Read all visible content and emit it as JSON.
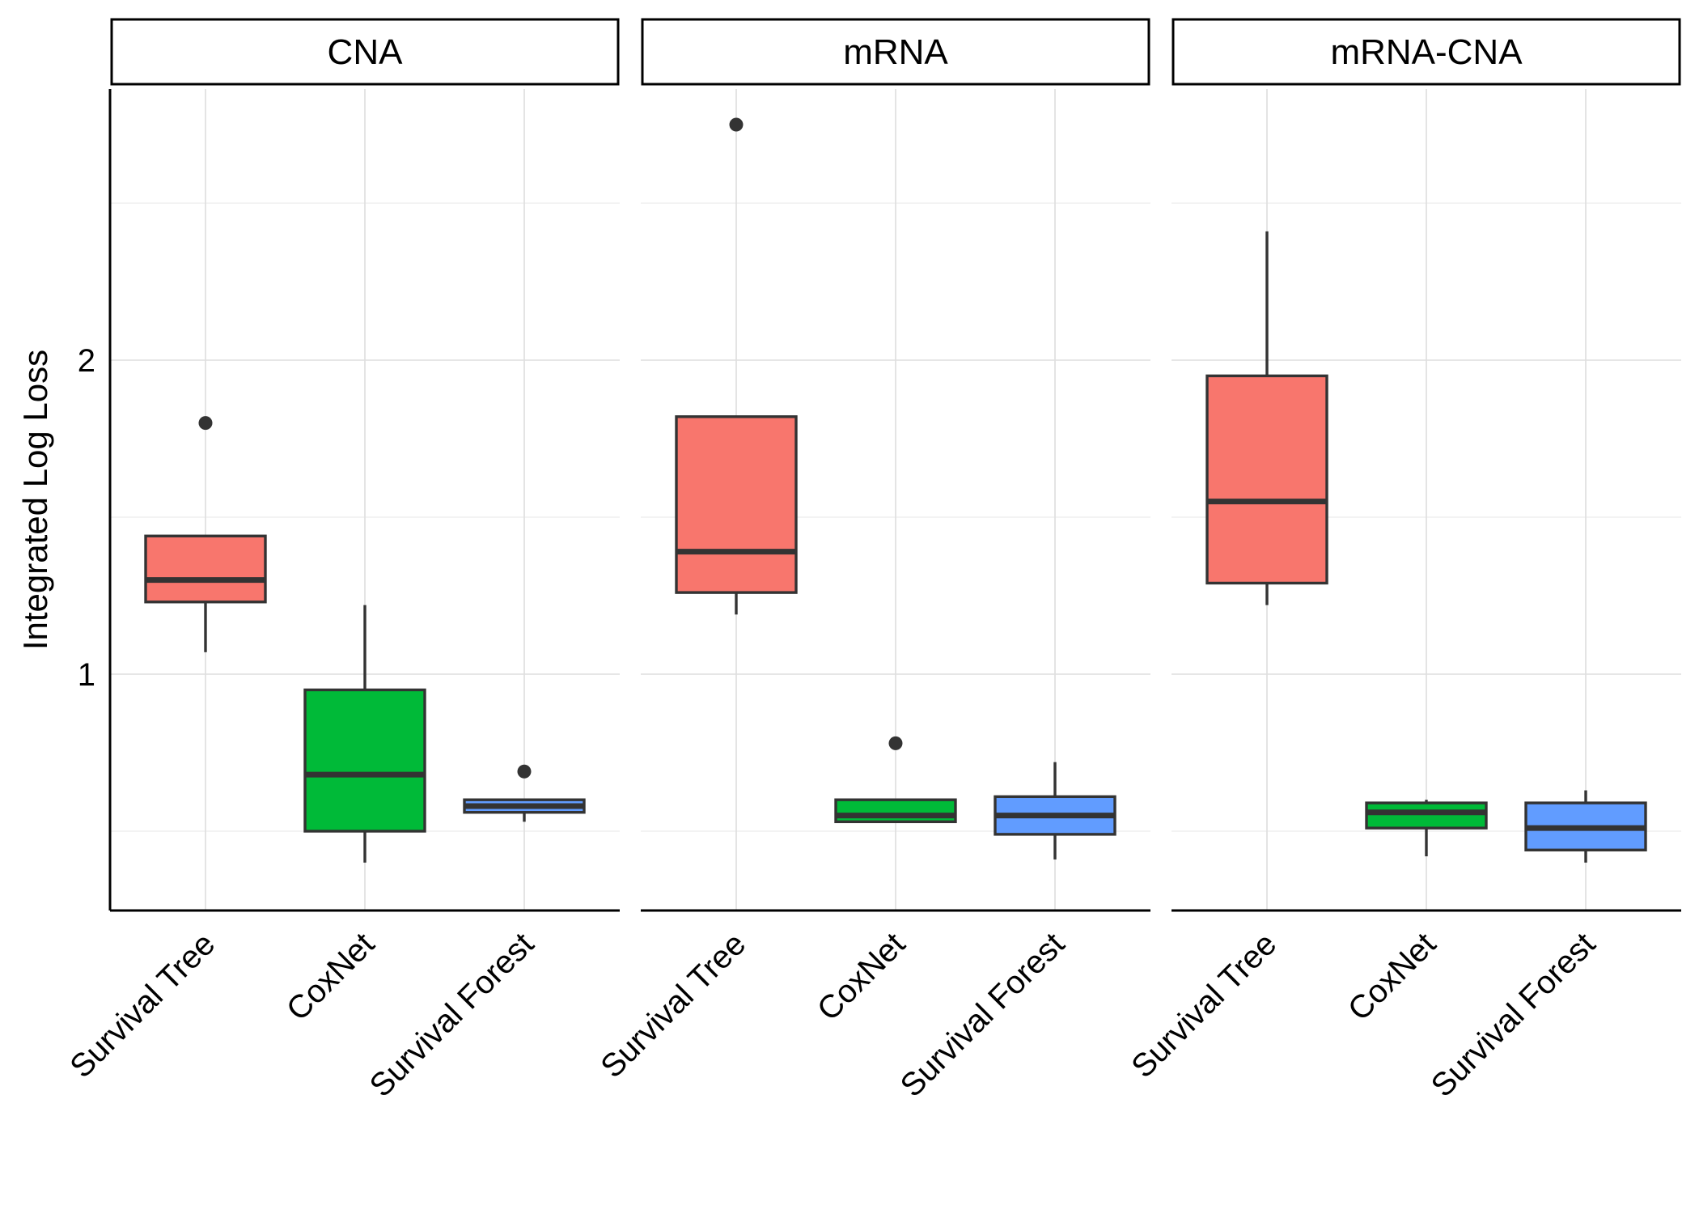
{
  "chart_data": {
    "type": "boxplot",
    "ylabel": "Integrated Log Loss",
    "yticks": [
      1,
      2
    ],
    "ylim": [
      0.25,
      2.85
    ],
    "grid": true,
    "categories": [
      "Survival Tree",
      "CoxNet",
      "Survival Forest"
    ],
    "colors": {
      "Survival Tree": "#f8766d",
      "CoxNet": "#00ba38",
      "Survival Forest": "#619cff"
    },
    "panels": [
      {
        "label": "CNA",
        "boxes": [
          {
            "category": "Survival Tree",
            "min": 1.07,
            "q1": 1.23,
            "median": 1.3,
            "q3": 1.44,
            "max": 1.44,
            "outliers": [
              1.8
            ]
          },
          {
            "category": "CoxNet",
            "min": 0.4,
            "q1": 0.5,
            "median": 0.68,
            "q3": 0.95,
            "max": 1.22,
            "outliers": []
          },
          {
            "category": "Survival Forest",
            "min": 0.53,
            "q1": 0.56,
            "median": 0.58,
            "q3": 0.6,
            "max": 0.6,
            "outliers": [
              0.69
            ]
          }
        ]
      },
      {
        "label": "mRNA",
        "boxes": [
          {
            "category": "Survival Tree",
            "min": 1.19,
            "q1": 1.26,
            "median": 1.39,
            "q3": 1.82,
            "max": 1.82,
            "outliers": [
              2.75
            ]
          },
          {
            "category": "CoxNet",
            "min": 0.53,
            "q1": 0.53,
            "median": 0.55,
            "q3": 0.6,
            "max": 0.6,
            "outliers": [
              0.78
            ]
          },
          {
            "category": "Survival Forest",
            "min": 0.41,
            "q1": 0.49,
            "median": 0.55,
            "q3": 0.61,
            "max": 0.72,
            "outliers": []
          }
        ]
      },
      {
        "label": "mRNA-CNA",
        "boxes": [
          {
            "category": "Survival Tree",
            "min": 1.22,
            "q1": 1.29,
            "median": 1.55,
            "q3": 1.95,
            "max": 2.41,
            "outliers": []
          },
          {
            "category": "CoxNet",
            "min": 0.42,
            "q1": 0.51,
            "median": 0.56,
            "q3": 0.59,
            "max": 0.6,
            "outliers": []
          },
          {
            "category": "Survival Forest",
            "min": 0.4,
            "q1": 0.44,
            "median": 0.51,
            "q3": 0.59,
            "max": 0.63,
            "outliers": []
          }
        ]
      }
    ]
  }
}
